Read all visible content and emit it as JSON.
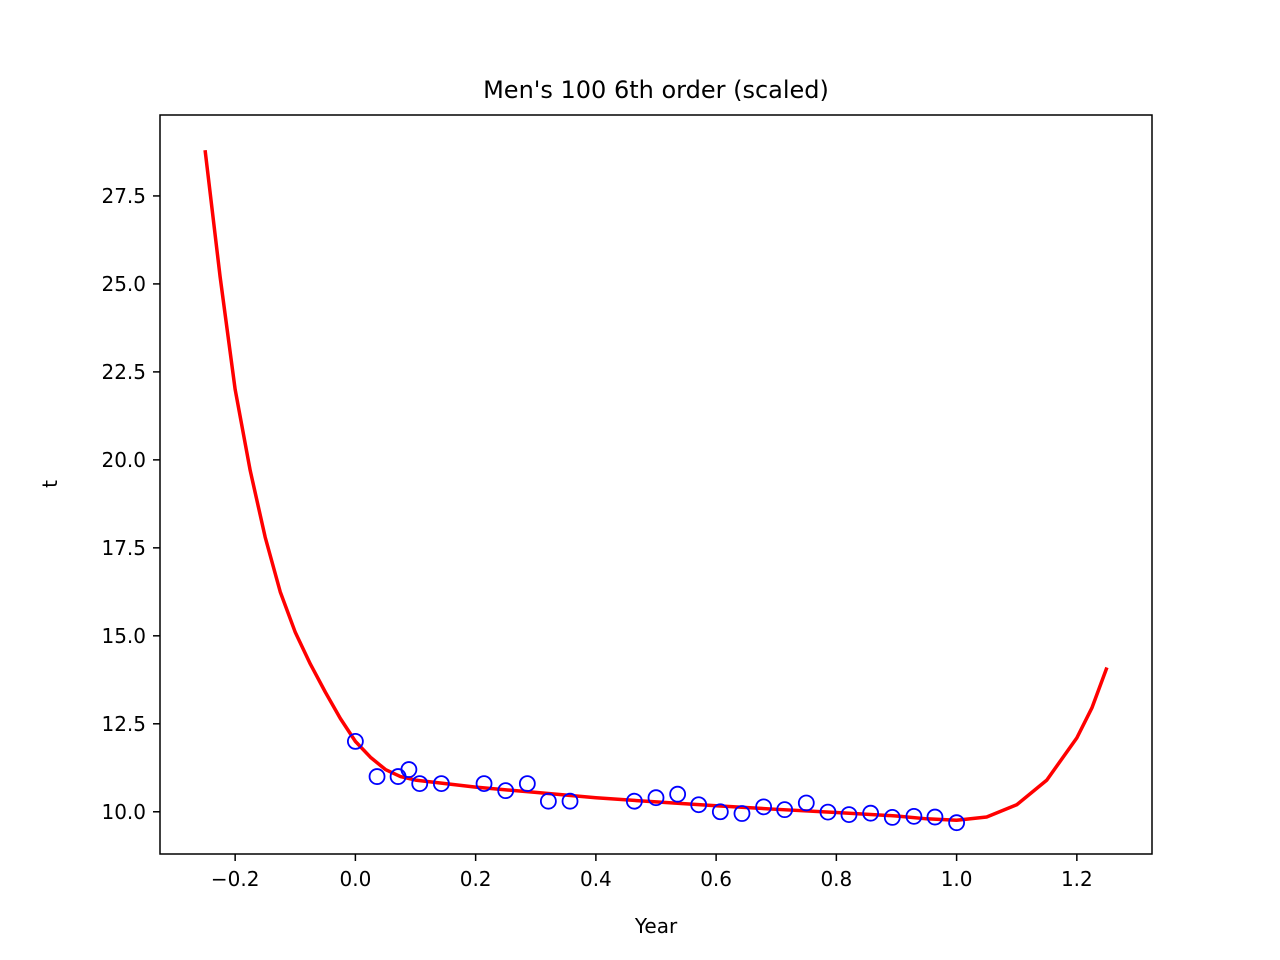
{
  "chart_data": {
    "type": "scatter",
    "title": "Men's 100 6th order (scaled)",
    "xlabel": "Year",
    "ylabel": "t",
    "xlim": [
      -0.325,
      1.325
    ],
    "ylim": [
      8.8,
      29.8
    ],
    "xticks": [
      -0.2,
      0.0,
      0.2,
      0.4,
      0.6,
      0.8,
      1.0,
      1.2
    ],
    "xtick_labels": [
      "−0.2",
      "0.0",
      "0.2",
      "0.4",
      "0.6",
      "0.8",
      "1.0",
      "1.2"
    ],
    "yticks": [
      10.0,
      12.5,
      15.0,
      17.5,
      20.0,
      22.5,
      25.0,
      27.5
    ],
    "ytick_labels": [
      "10.0",
      "12.5",
      "15.0",
      "17.5",
      "20.0",
      "22.5",
      "25.0",
      "27.5"
    ],
    "grid": false,
    "legend": false,
    "series": [
      {
        "kind": "scatter",
        "marker": "open-circle",
        "color": "#0000ff",
        "points": [
          {
            "x": 0.0,
            "y": 12.0
          },
          {
            "x": 0.036,
            "y": 11.0
          },
          {
            "x": 0.071,
            "y": 11.0
          },
          {
            "x": 0.089,
            "y": 11.2
          },
          {
            "x": 0.107,
            "y": 10.8
          },
          {
            "x": 0.143,
            "y": 10.8
          },
          {
            "x": 0.214,
            "y": 10.8
          },
          {
            "x": 0.25,
            "y": 10.6
          },
          {
            "x": 0.286,
            "y": 10.8
          },
          {
            "x": 0.321,
            "y": 10.3
          },
          {
            "x": 0.357,
            "y": 10.3
          },
          {
            "x": 0.464,
            "y": 10.3
          },
          {
            "x": 0.5,
            "y": 10.4
          },
          {
            "x": 0.536,
            "y": 10.5
          },
          {
            "x": 0.571,
            "y": 10.2
          },
          {
            "x": 0.607,
            "y": 10.0
          },
          {
            "x": 0.643,
            "y": 9.95
          },
          {
            "x": 0.679,
            "y": 10.14
          },
          {
            "x": 0.714,
            "y": 10.06
          },
          {
            "x": 0.75,
            "y": 10.25
          },
          {
            "x": 0.786,
            "y": 9.99
          },
          {
            "x": 0.821,
            "y": 9.92
          },
          {
            "x": 0.857,
            "y": 9.96
          },
          {
            "x": 0.893,
            "y": 9.84
          },
          {
            "x": 0.929,
            "y": 9.87
          },
          {
            "x": 0.964,
            "y": 9.85
          },
          {
            "x": 1.0,
            "y": 9.69
          }
        ]
      },
      {
        "kind": "line",
        "color": "#ff0000",
        "points": [
          {
            "x": -0.25,
            "y": 28.8
          },
          {
            "x": -0.225,
            "y": 25.2
          },
          {
            "x": -0.2,
            "y": 22.0
          },
          {
            "x": -0.175,
            "y": 19.7
          },
          {
            "x": -0.15,
            "y": 17.8
          },
          {
            "x": -0.125,
            "y": 16.25
          },
          {
            "x": -0.1,
            "y": 15.1
          },
          {
            "x": -0.075,
            "y": 14.2
          },
          {
            "x": -0.05,
            "y": 13.4
          },
          {
            "x": -0.025,
            "y": 12.65
          },
          {
            "x": 0.0,
            "y": 12.0
          },
          {
            "x": 0.025,
            "y": 11.55
          },
          {
            "x": 0.05,
            "y": 11.2
          },
          {
            "x": 0.075,
            "y": 11.0
          },
          {
            "x": 0.1,
            "y": 10.9
          },
          {
            "x": 0.15,
            "y": 10.8
          },
          {
            "x": 0.2,
            "y": 10.7
          },
          {
            "x": 0.3,
            "y": 10.55
          },
          {
            "x": 0.4,
            "y": 10.4
          },
          {
            "x": 0.5,
            "y": 10.28
          },
          {
            "x": 0.6,
            "y": 10.17
          },
          {
            "x": 0.7,
            "y": 10.07
          },
          {
            "x": 0.8,
            "y": 9.98
          },
          {
            "x": 0.9,
            "y": 9.88
          },
          {
            "x": 0.95,
            "y": 9.8
          },
          {
            "x": 1.0,
            "y": 9.76
          },
          {
            "x": 1.05,
            "y": 9.85
          },
          {
            "x": 1.1,
            "y": 10.2
          },
          {
            "x": 1.15,
            "y": 10.9
          },
          {
            "x": 1.2,
            "y": 12.1
          },
          {
            "x": 1.225,
            "y": 12.95
          },
          {
            "x": 1.25,
            "y": 14.1
          }
        ]
      }
    ]
  }
}
